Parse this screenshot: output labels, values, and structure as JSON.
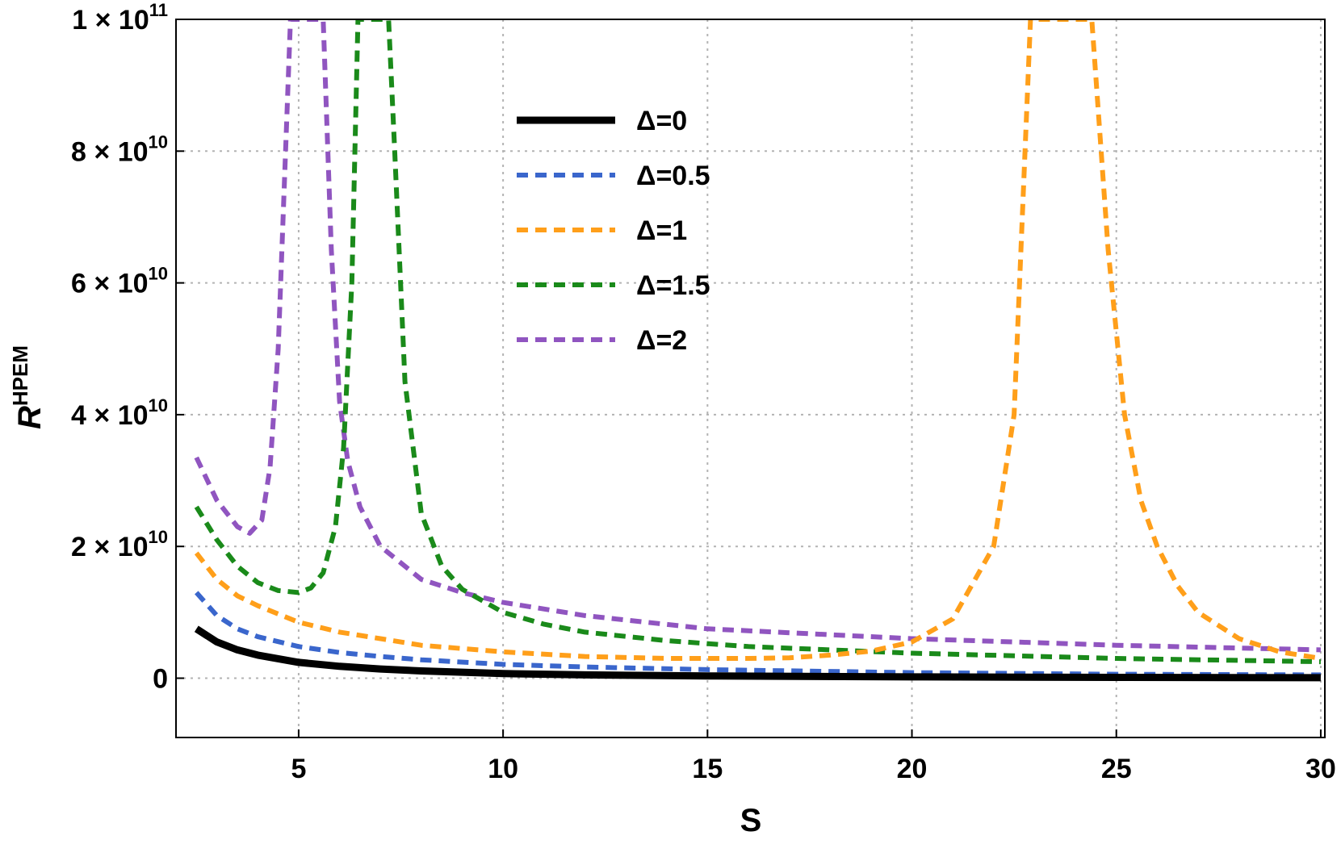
{
  "chart_data": {
    "type": "line",
    "xlabel": "S",
    "ylabel": "R",
    "ylabel_superscript": "HPEM",
    "xlim": [
      2,
      30.1
    ],
    "ylim": [
      -9000000000.0,
      100000000000.0
    ],
    "x_ticks": [
      5,
      10,
      15,
      20,
      25,
      30
    ],
    "y_ticks": [
      {
        "value": 0,
        "mantissa": "0",
        "exponent": ""
      },
      {
        "value": 20000000000.0,
        "mantissa": "2 × 10",
        "exponent": "10"
      },
      {
        "value": 40000000000.0,
        "mantissa": "4 × 10",
        "exponent": "10"
      },
      {
        "value": 60000000000.0,
        "mantissa": "6 × 10",
        "exponent": "10"
      },
      {
        "value": 80000000000.0,
        "mantissa": "8 × 10",
        "exponent": "10"
      },
      {
        "value": 100000000000.0,
        "mantissa": "1 × 10",
        "exponent": "11"
      }
    ],
    "grid": true,
    "legend_position": "top-center",
    "series": [
      {
        "name": "Δ=0",
        "color": "#000000",
        "style": "solid",
        "x": [
          2.5,
          3,
          3.5,
          4,
          5,
          6,
          7,
          8,
          10,
          12,
          15,
          20,
          25,
          30
        ],
        "y": [
          7500000000.0,
          5500000000.0,
          4300000000.0,
          3500000000.0,
          2400000000.0,
          1800000000.0,
          1400000000.0,
          1100000000.0,
          700000000.0,
          500000000.0,
          350000000.0,
          200000000.0,
          120000000.0,
          80000000.0
        ]
      },
      {
        "name": "Δ=0.5",
        "color": "#3a66cc",
        "style": "dashed",
        "x": [
          2.5,
          3,
          3.5,
          4,
          5,
          6,
          7,
          8,
          10,
          12,
          15,
          20,
          25,
          30
        ],
        "y": [
          13000000000.0,
          9500000000.0,
          7500000000.0,
          6300000000.0,
          4800000000.0,
          3900000000.0,
          3300000000.0,
          2800000000.0,
          2100000000.0,
          1700000000.0,
          1300000000.0,
          850000000.0,
          600000000.0,
          500000000.0
        ]
      },
      {
        "name": "Δ=1",
        "color": "#ff9f1a",
        "style": "dashed",
        "x": [
          2.5,
          3,
          3.5,
          4,
          5,
          6,
          7,
          8,
          10,
          12,
          14,
          16,
          17,
          18,
          19,
          20,
          21,
          22,
          22.5,
          22.9,
          23.3,
          23.7,
          24,
          24.4,
          24.8,
          25.2,
          25.6,
          26,
          26.5,
          27,
          28,
          29,
          30
        ],
        "y": [
          19000000000.0,
          15000000000.0,
          12500000000.0,
          11000000000.0,
          8500000000.0,
          7000000000.0,
          6000000000.0,
          5000000000.0,
          4000000000.0,
          3300000000.0,
          3000000000.0,
          3000000000.0,
          3100000000.0,
          3500000000.0,
          4100000000.0,
          5500000000.0,
          9000000000.0,
          20000000000.0,
          40000000000.0,
          100000000000.0,
          100000000000.0,
          100000000000.0,
          100000000000.0,
          100000000000.0,
          65000000000.0,
          40000000000.0,
          27000000000.0,
          20000000000.0,
          14000000000.0,
          10000000000.0,
          6000000000.0,
          4000000000.0,
          3000000000.0
        ]
      },
      {
        "name": "Δ=1.5",
        "color": "#1a8a1a",
        "style": "dashed",
        "x": [
          2.5,
          3,
          3.5,
          4,
          4.5,
          5,
          5.3,
          5.6,
          5.9,
          6.1,
          6.3,
          6.45,
          6.6,
          6.8,
          7,
          7.2,
          7.35,
          7.6,
          8,
          8.5,
          9,
          10,
          11,
          12,
          14,
          16,
          20,
          25,
          30
        ],
        "y": [
          26000000000.0,
          21000000000.0,
          17000000000.0,
          14500000000.0,
          13300000000.0,
          13000000000.0,
          13700000000.0,
          16000000000.0,
          23000000000.0,
          35000000000.0,
          60000000000.0,
          100000000000.0,
          100000000000.0,
          100000000000.0,
          100000000000.0,
          100000000000.0,
          80000000000.0,
          45000000000.0,
          25000000000.0,
          17000000000.0,
          13500000000.0,
          10000000000.0,
          8200000000.0,
          7000000000.0,
          5700000000.0,
          4800000000.0,
          3800000000.0,
          3000000000.0,
          2500000000.0
        ]
      },
      {
        "name": "Δ=2",
        "color": "#9055c0",
        "style": "dashed",
        "x": [
          2.5,
          3,
          3.5,
          3.8,
          4.1,
          4.3,
          4.5,
          4.65,
          4.8,
          5,
          5.3,
          5.6,
          5.8,
          6,
          6.2,
          6.5,
          7,
          8,
          9,
          10,
          12,
          15,
          20,
          25,
          30
        ],
        "y": [
          33500000000.0,
          27000000000.0,
          23000000000.0,
          22000000000.0,
          24000000000.0,
          32000000000.0,
          50000000000.0,
          75000000000.0,
          100000000000.0,
          100000000000.0,
          100000000000.0,
          100000000000.0,
          65000000000.0,
          42000000000.0,
          33000000000.0,
          26000000000.0,
          20000000000.0,
          15000000000.0,
          13000000000.0,
          11500000000.0,
          9500000000.0,
          7500000000.0,
          6000000000.0,
          5000000000.0,
          4300000000.0
        ]
      }
    ]
  }
}
